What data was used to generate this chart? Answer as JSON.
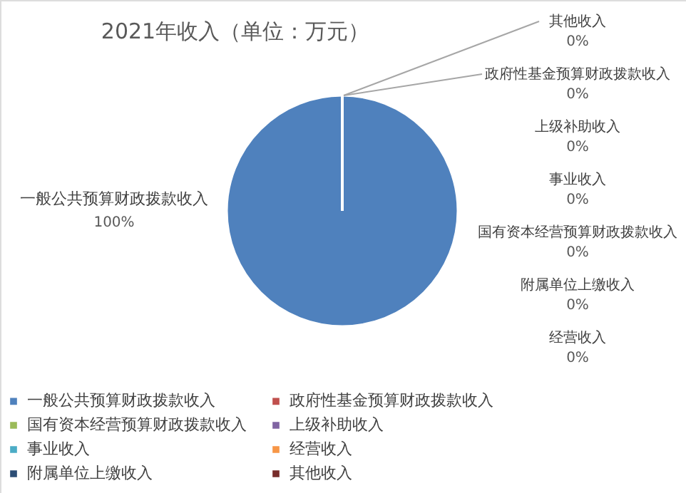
{
  "chart_data": {
    "type": "pie",
    "title": "2021年收入（单位：万元）",
    "categories": [
      "一般公共预算财政拨款收入",
      "政府性基金预算财政拨款收入",
      "国有资本经营预算财政拨款收入",
      "上级补助收入",
      "事业收入",
      "经营收入",
      "附属单位上缴收入",
      "其他收入"
    ],
    "values": [
      100,
      0,
      0,
      0,
      0,
      0,
      0,
      0
    ],
    "colors": [
      "#4f81bd",
      "#c0504d",
      "#9bbb59",
      "#8064a2",
      "#4bacc6",
      "#f79646",
      "#2c4d75",
      "#772c2a"
    ],
    "value_labels": [
      "100%",
      "0%",
      "0%",
      "0%",
      "0%",
      "0%",
      "0%",
      "0%"
    ],
    "legend": "bottom"
  }
}
